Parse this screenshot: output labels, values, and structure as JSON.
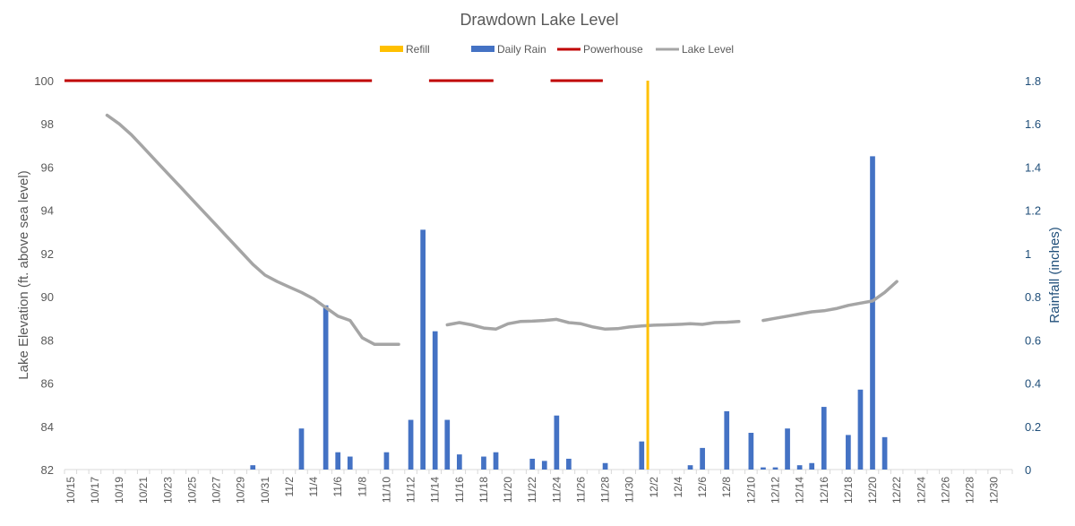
{
  "chart_data": {
    "type": "combo",
    "title": "Drawdown Lake Level",
    "ylabel_left": "Lake Elevation (ft. above sea level)",
    "ylabel_right": "Rainfall (inches)",
    "ylim_left": [
      82,
      100
    ],
    "yticks_left": [
      82,
      84,
      86,
      88,
      90,
      92,
      94,
      96,
      98,
      100
    ],
    "ylim_right": [
      0,
      1.8
    ],
    "yticks_right": [
      "0",
      "0.2",
      "0.4",
      "0.6",
      "0.8",
      "1",
      "1.2",
      "1.4",
      "1.6",
      "1.8"
    ],
    "legend_position": "top",
    "legend": [
      {
        "name": "Refill",
        "kind": "rect",
        "color": "#FFC000"
      },
      {
        "name": "Daily Rain",
        "kind": "rect",
        "color": "#4472C4"
      },
      {
        "name": "Powerhouse",
        "kind": "line",
        "color": "#C00000"
      },
      {
        "name": "Lake Level",
        "kind": "line",
        "color": "#A5A5A5"
      }
    ],
    "x_start": "10/15",
    "x_end": "12/31",
    "x_tick_labels": [
      "10/15",
      "10/17",
      "10/19",
      "10/21",
      "10/23",
      "10/25",
      "10/27",
      "10/29",
      "10/31",
      "11/2",
      "11/4",
      "11/6",
      "11/8",
      "11/10",
      "11/12",
      "11/14",
      "11/16",
      "11/18",
      "11/20",
      "11/22",
      "11/24",
      "11/26",
      "11/28",
      "11/30",
      "12/2",
      "12/4",
      "12/6",
      "12/8",
      "12/10",
      "12/12",
      "12/14",
      "12/16",
      "12/18",
      "12/20",
      "12/22",
      "12/24",
      "12/26",
      "12/28",
      "12/30"
    ],
    "grid": false,
    "rain": [
      {
        "date": "10/30",
        "value": 0.02
      },
      {
        "date": "11/3",
        "value": 0.19
      },
      {
        "date": "11/5",
        "value": 0.76
      },
      {
        "date": "11/6",
        "value": 0.08
      },
      {
        "date": "11/7",
        "value": 0.06
      },
      {
        "date": "11/10",
        "value": 0.08
      },
      {
        "date": "11/12",
        "value": 0.23
      },
      {
        "date": "11/13",
        "value": 1.11
      },
      {
        "date": "11/14",
        "value": 0.64
      },
      {
        "date": "11/15",
        "value": 0.23
      },
      {
        "date": "11/16",
        "value": 0.07
      },
      {
        "date": "11/18",
        "value": 0.06
      },
      {
        "date": "11/19",
        "value": 0.08
      },
      {
        "date": "11/22",
        "value": 0.05
      },
      {
        "date": "11/23",
        "value": 0.04
      },
      {
        "date": "11/24",
        "value": 0.25
      },
      {
        "date": "11/25",
        "value": 0.05
      },
      {
        "date": "11/28",
        "value": 0.03
      },
      {
        "date": "12/1",
        "value": 0.13
      },
      {
        "date": "12/5",
        "value": 0.02
      },
      {
        "date": "12/6",
        "value": 0.1
      },
      {
        "date": "12/8",
        "value": 0.27
      },
      {
        "date": "12/10",
        "value": 0.17
      },
      {
        "date": "12/11",
        "value": 0.01
      },
      {
        "date": "12/12",
        "value": 0.01
      },
      {
        "date": "12/13",
        "value": 0.19
      },
      {
        "date": "12/14",
        "value": 0.02
      },
      {
        "date": "12/15",
        "value": 0.03
      },
      {
        "date": "12/16",
        "value": 0.29
      },
      {
        "date": "12/18",
        "value": 0.16
      },
      {
        "date": "12/19",
        "value": 0.37
      },
      {
        "date": "12/20",
        "value": 1.45
      },
      {
        "date": "12/21",
        "value": 0.15
      }
    ],
    "lake_level": [
      [
        [
          "10/18",
          98.4
        ],
        [
          "10/19",
          98.0
        ],
        [
          "10/20",
          97.5
        ],
        [
          "10/21",
          96.9
        ],
        [
          "10/22",
          96.3
        ],
        [
          "10/23",
          95.7
        ],
        [
          "10/24",
          95.1
        ],
        [
          "10/25",
          94.5
        ],
        [
          "10/26",
          93.9
        ],
        [
          "10/27",
          93.3
        ],
        [
          "10/28",
          92.7
        ],
        [
          "10/29",
          92.1
        ],
        [
          "10/30",
          91.5
        ],
        [
          "10/31",
          91.0
        ],
        [
          "11/1",
          90.7
        ],
        [
          "11/2",
          90.45
        ],
        [
          "11/3",
          90.2
        ],
        [
          "11/4",
          89.9
        ],
        [
          "11/5",
          89.5
        ],
        [
          "11/6",
          89.1
        ],
        [
          "11/7",
          88.9
        ],
        [
          "11/8",
          88.1
        ],
        [
          "11/9",
          87.8
        ],
        [
          "11/10",
          87.8
        ],
        [
          "11/11",
          87.8
        ]
      ],
      [
        [
          "11/15",
          88.7
        ],
        [
          "11/16",
          88.8
        ],
        [
          "11/17",
          88.7
        ],
        [
          "11/18",
          88.55
        ],
        [
          "11/19",
          88.5
        ],
        [
          "11/20",
          88.75
        ],
        [
          "11/21",
          88.85
        ],
        [
          "11/22",
          88.87
        ],
        [
          "11/23",
          88.9
        ],
        [
          "11/24",
          88.95
        ],
        [
          "11/25",
          88.8
        ],
        [
          "11/26",
          88.75
        ],
        [
          "11/27",
          88.6
        ],
        [
          "11/28",
          88.5
        ],
        [
          "11/29",
          88.52
        ],
        [
          "11/30",
          88.6
        ],
        [
          "12/1",
          88.65
        ],
        [
          "12/2",
          88.68
        ],
        [
          "12/3",
          88.7
        ],
        [
          "12/4",
          88.72
        ],
        [
          "12/5",
          88.75
        ],
        [
          "12/6",
          88.72
        ],
        [
          "12/7",
          88.8
        ],
        [
          "12/8",
          88.82
        ],
        [
          "12/9",
          88.85
        ]
      ],
      [
        [
          "12/11",
          88.9
        ],
        [
          "12/12",
          89.0
        ],
        [
          "12/13",
          89.1
        ],
        [
          "12/14",
          89.2
        ],
        [
          "12/15",
          89.3
        ],
        [
          "12/16",
          89.35
        ],
        [
          "12/17",
          89.45
        ],
        [
          "12/18",
          89.6
        ],
        [
          "12/19",
          89.7
        ],
        [
          "12/20",
          89.8
        ],
        [
          "12/21",
          90.2
        ],
        [
          "12/22",
          90.7
        ]
      ]
    ],
    "powerhouse": [
      {
        "start": "10/15",
        "end": "11/9",
        "level": 100
      },
      {
        "start": "11/14",
        "end": "11/19",
        "level": 100
      },
      {
        "start": "11/24",
        "end": "11/28",
        "level": 100
      }
    ],
    "refill": {
      "date": "12/2",
      "range": [
        82,
        100
      ]
    },
    "colors": {
      "rain": "#4472C4",
      "lake": "#A5A5A5",
      "powerhouse": "#C00000",
      "refill": "#FFC000",
      "axis_text": "#595959",
      "title": "#595959",
      "right_axis": "#1F4E79"
    }
  }
}
